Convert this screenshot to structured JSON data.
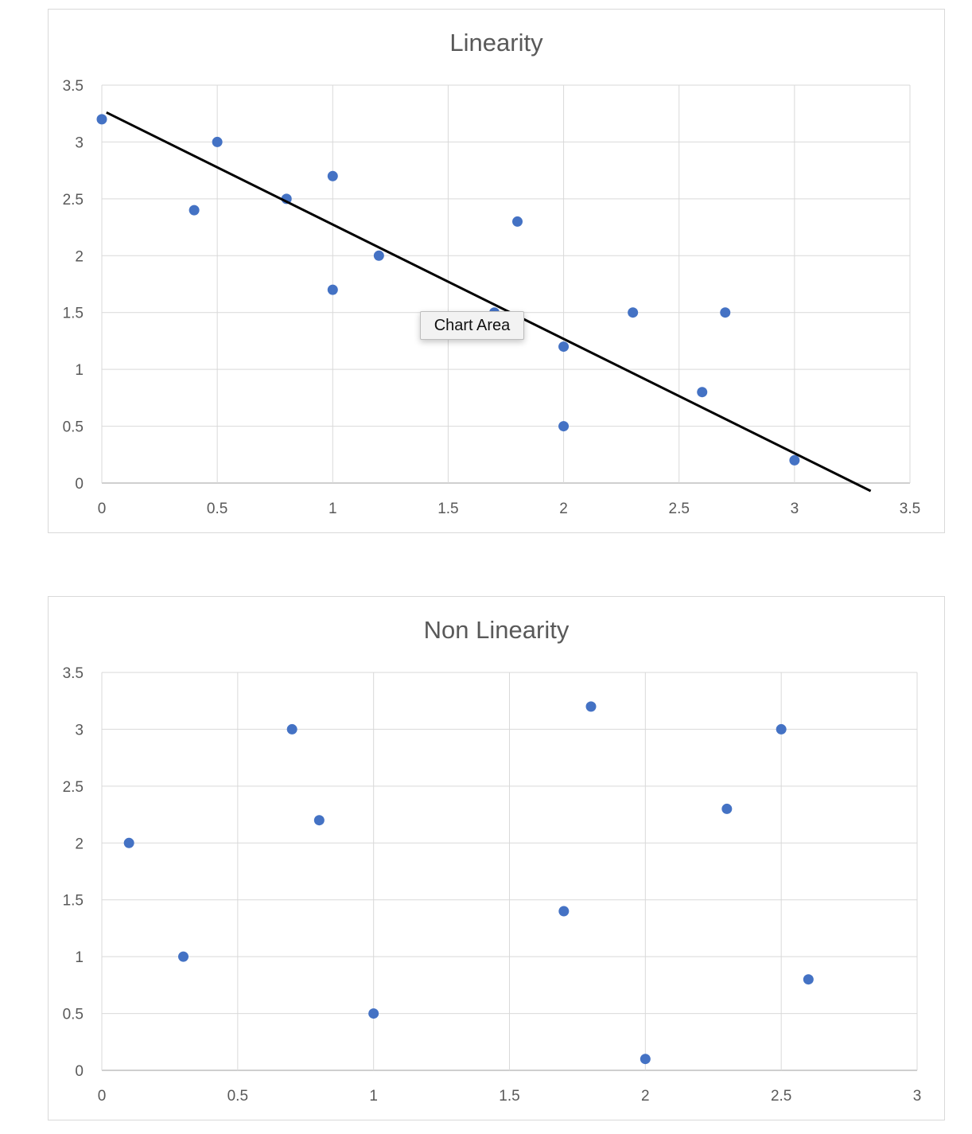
{
  "colors": {
    "marker": "#4472C4",
    "grid": "#d9d9d9",
    "text": "#595959",
    "trendline": "#000000"
  },
  "tooltip": {
    "label": "Chart Area"
  },
  "chart_data": [
    {
      "type": "scatter",
      "title": "Linearity",
      "xlabel": "",
      "ylabel": "",
      "xlim": [
        0,
        3.5
      ],
      "ylim": [
        0,
        3.5
      ],
      "x_ticks": [
        "0",
        "0.5",
        "1",
        "1.5",
        "2",
        "2.5",
        "3",
        "3.5"
      ],
      "y_ticks": [
        "0",
        "0.5",
        "1",
        "1.5",
        "2",
        "2.5",
        "3",
        "3.5"
      ],
      "grid": true,
      "legend": "none",
      "series": [
        {
          "x": [
            0,
            0.4,
            0.5,
            0.8,
            1,
            1,
            1.2,
            1.7,
            1.8,
            2,
            2,
            2.3,
            2.6,
            2.7,
            3
          ],
          "y": [
            3.2,
            2.4,
            3.0,
            2.5,
            2.7,
            1.7,
            2.0,
            1.5,
            2.3,
            1.2,
            0.5,
            1.5,
            0.8,
            1.5,
            0.2
          ]
        }
      ],
      "trendline": {
        "type": "linear",
        "x": [
          0.02,
          3.33
        ],
        "y": [
          3.26,
          -0.07
        ]
      }
    },
    {
      "type": "scatter",
      "title": "Non Linearity",
      "xlabel": "",
      "ylabel": "",
      "xlim": [
        0,
        3
      ],
      "ylim": [
        0,
        3.5
      ],
      "x_ticks": [
        "0",
        "0.5",
        "1",
        "1.5",
        "2",
        "2.5",
        "3"
      ],
      "y_ticks": [
        "0",
        "0.5",
        "1",
        "1.5",
        "2",
        "2.5",
        "3",
        "3.5"
      ],
      "grid": true,
      "legend": "none",
      "series": [
        {
          "x": [
            0.1,
            0.3,
            0.7,
            0.8,
            1.0,
            1.7,
            1.8,
            2.0,
            2.3,
            2.5,
            2.6
          ],
          "y": [
            2.0,
            1.0,
            3.0,
            2.2,
            0.5,
            1.4,
            3.2,
            0.1,
            2.3,
            3.0,
            0.8
          ]
        }
      ]
    }
  ]
}
